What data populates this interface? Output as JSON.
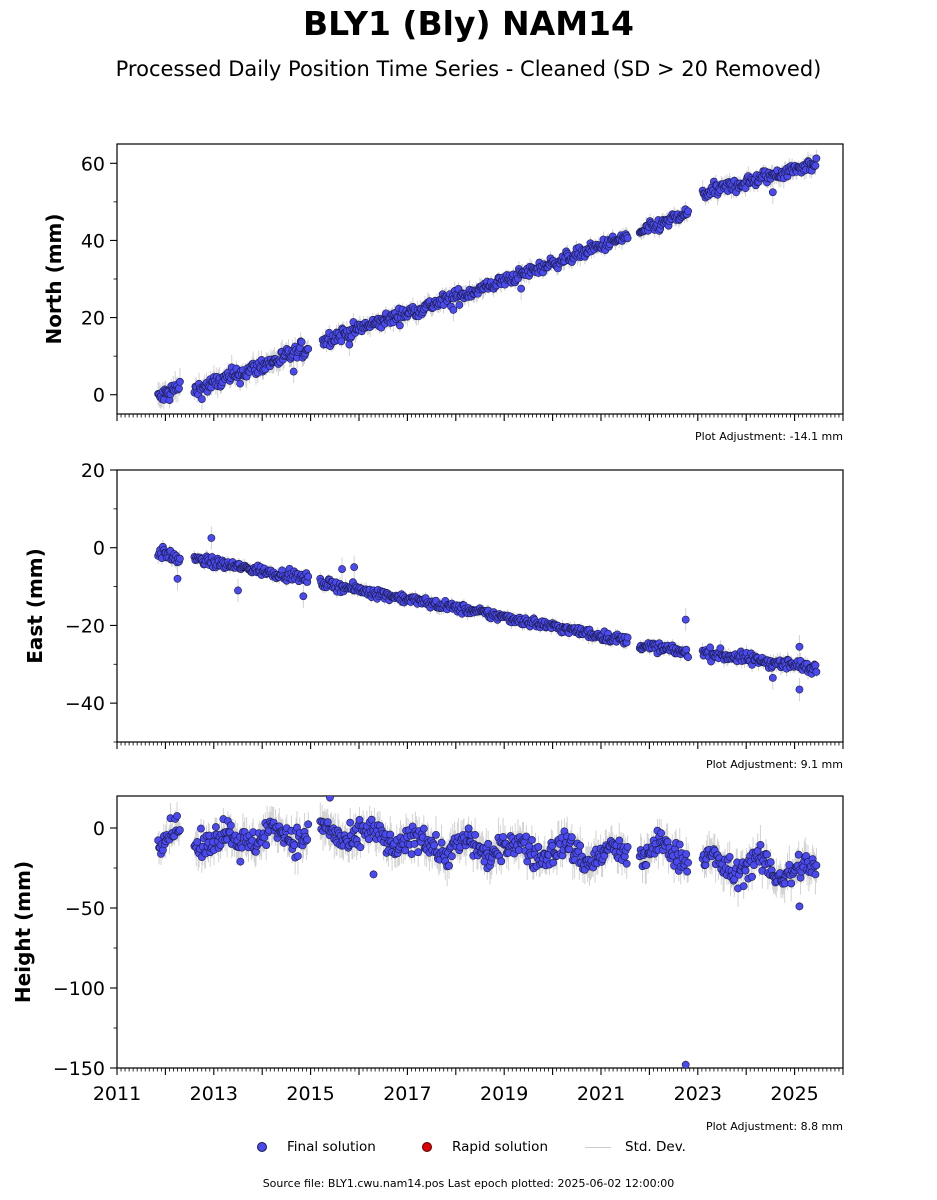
{
  "title": "BLY1 (Bly) NAM14",
  "subtitle": "Processed Daily Position Time Series - Cleaned (SD > 20 Removed)",
  "footer": "Source file: BLY1.cwu.nam14.pos  Last epoch plotted: 2025-06-02 12:00:00",
  "legend": {
    "final": "Final solution",
    "rapid": "Rapid solution",
    "stddev": "Std. Dev."
  },
  "colors": {
    "final": "#4a4af0",
    "final_edge": "#1a1a40",
    "rapid": "#dd0000",
    "stddev": "#c8c8c8"
  },
  "chart_data": [
    {
      "type": "scatter",
      "ylabel": "North (mm)",
      "adjustment": "Plot Adjustment: -14.1 mm",
      "xlim": [
        2011,
        2026
      ],
      "ylim": [
        -5,
        65
      ],
      "yticks": [
        0,
        20,
        40,
        60
      ],
      "show_xticklabels": false,
      "segments": [
        {
          "x": [
            2011.85,
            2012.3
          ],
          "y": [
            -1,
            2
          ],
          "noise": 2.0
        },
        {
          "x": [
            2012.6,
            2014.95
          ],
          "y": [
            1,
            12
          ],
          "noise": 1.8
        },
        {
          "x": [
            2015.25,
            2018.65
          ],
          "y": [
            14,
            28
          ],
          "noise": 1.5
        },
        {
          "x": [
            2018.65,
            2021.55
          ],
          "y": [
            28,
            41
          ],
          "noise": 1.3
        },
        {
          "x": [
            2021.8,
            2022.8
          ],
          "y": [
            42,
            47
          ],
          "noise": 1.3
        },
        {
          "x": [
            2023.1,
            2025.45
          ],
          "y": [
            52,
            60
          ],
          "noise": 1.5
        }
      ],
      "outliers": [
        {
          "x": 2024.55,
          "y": 52.5
        },
        {
          "x": 2015.8,
          "y": 13.0
        },
        {
          "x": 2014.65,
          "y": 6.0
        },
        {
          "x": 2019.35,
          "y": 27.5
        },
        {
          "x": 2017.95,
          "y": 22.0
        }
      ]
    },
    {
      "type": "scatter",
      "ylabel": "East (mm)",
      "adjustment": "Plot Adjustment: 9.1 mm",
      "xlim": [
        2011,
        2026
      ],
      "ylim": [
        -50,
        20
      ],
      "yticks": [
        -40,
        -20,
        0,
        20
      ],
      "show_xticklabels": false,
      "segments": [
        {
          "x": [
            2011.85,
            2012.3
          ],
          "y": [
            -1,
            -3
          ],
          "noise": 1.2
        },
        {
          "x": [
            2012.6,
            2014.95
          ],
          "y": [
            -3,
            -8
          ],
          "noise": 1.0
        },
        {
          "x": [
            2015.2,
            2018.65
          ],
          "y": [
            -9,
            -17
          ],
          "noise": 1.0
        },
        {
          "x": [
            2018.65,
            2021.55
          ],
          "y": [
            -17,
            -24
          ],
          "noise": 1.0
        },
        {
          "x": [
            2021.8,
            2022.8
          ],
          "y": [
            -25,
            -27
          ],
          "noise": 1.0
        },
        {
          "x": [
            2023.1,
            2025.45
          ],
          "y": [
            -27,
            -31
          ],
          "noise": 1.2
        }
      ],
      "outliers": [
        {
          "x": 2012.95,
          "y": 2.5
        },
        {
          "x": 2012.25,
          "y": -8.0
        },
        {
          "x": 2013.5,
          "y": -11.0
        },
        {
          "x": 2014.85,
          "y": -12.5
        },
        {
          "x": 2015.65,
          "y": -5.5
        },
        {
          "x": 2015.9,
          "y": -5.0
        },
        {
          "x": 2022.75,
          "y": -18.5
        },
        {
          "x": 2025.1,
          "y": -25.5
        },
        {
          "x": 2025.1,
          "y": -36.5
        },
        {
          "x": 2024.55,
          "y": -33.5
        }
      ]
    },
    {
      "type": "scatter",
      "ylabel": "Height (mm)",
      "adjustment": "Plot Adjustment: 8.8 mm",
      "xlim": [
        2011,
        2026
      ],
      "ylim": [
        -150,
        20
      ],
      "yticks": [
        -150,
        -100,
        -50,
        0
      ],
      "show_xticklabels": true,
      "xticks": [
        2011,
        2013,
        2015,
        2017,
        2019,
        2021,
        2023,
        2025
      ],
      "segments": [
        {
          "x": [
            2011.85,
            2012.3
          ],
          "y": [
            -5,
            -5
          ],
          "noise": 6.0
        },
        {
          "x": [
            2012.6,
            2014.95
          ],
          "y": [
            -8,
            -3
          ],
          "noise": 7.0
        },
        {
          "x": [
            2015.2,
            2018.65
          ],
          "y": [
            -3,
            -14
          ],
          "noise": 7.0
        },
        {
          "x": [
            2018.65,
            2021.55
          ],
          "y": [
            -12,
            -18
          ],
          "noise": 7.0
        },
        {
          "x": [
            2021.8,
            2022.8
          ],
          "y": [
            -15,
            -15
          ],
          "noise": 7.0
        },
        {
          "x": [
            2023.1,
            2025.45
          ],
          "y": [
            -22,
            -28
          ],
          "noise": 7.0
        }
      ],
      "outliers": [
        {
          "x": 2022.75,
          "y": -148
        },
        {
          "x": 2015.4,
          "y": 19
        },
        {
          "x": 2016.3,
          "y": -29
        },
        {
          "x": 2025.1,
          "y": -49
        },
        {
          "x": 2013.55,
          "y": -21
        }
      ]
    }
  ]
}
